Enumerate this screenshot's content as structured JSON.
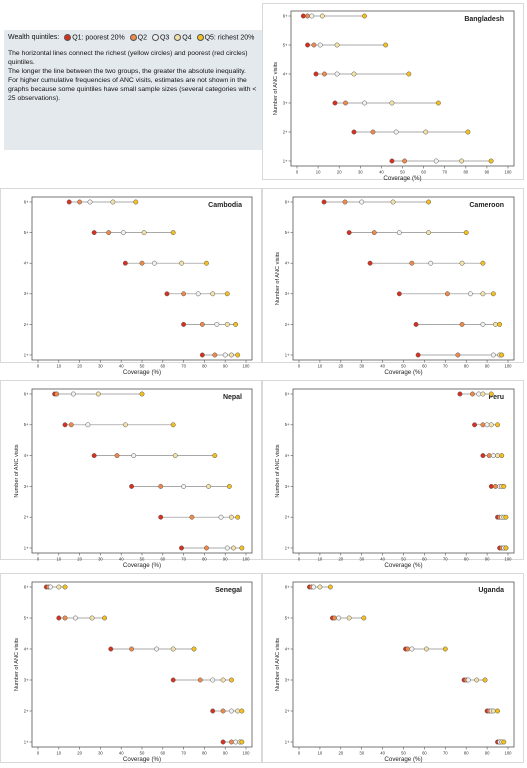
{
  "legend": {
    "title": "Wealth quintiles:",
    "items": [
      {
        "label": "Q1: poorest 20%",
        "color": "#d7301f"
      },
      {
        "label": "Q2",
        "color": "#f08a4b"
      },
      {
        "label": "Q3",
        "color": "#f2f2f2"
      },
      {
        "label": "Q4",
        "color": "#f3e3a6"
      },
      {
        "label": "Q5: richest 20%",
        "color": "#f5c01e"
      }
    ]
  },
  "note": [
    "The horizontal lines connect the richest (yellow circles) and poorest (red circles) quintiles.",
    "The longer the line between the two groups, the greater the absolute inequality.",
    "For higher cumulative frequencies of ANC visits, estimates are not shown in the graphs because some quintiles have small sample sizes (several categories with < 25 observations)."
  ],
  "chart_data": [
    {
      "type": "scatter",
      "title": "Bangladesh",
      "xlabel": "Coverage (%)",
      "ylabel": "Number of ANC visits",
      "xlim": [
        0,
        100
      ],
      "x_ticks": [
        0,
        10,
        20,
        30,
        40,
        50,
        60,
        70,
        80,
        90,
        100
      ],
      "y_ticks": [
        "1+",
        "2+",
        "3+",
        "4+",
        "5+",
        "6+"
      ],
      "rows": [
        {
          "visits": "6+",
          "values": [
            3,
            5,
            7,
            12,
            32
          ]
        },
        {
          "visits": "5+",
          "values": [
            5,
            8,
            11,
            19,
            42
          ]
        },
        {
          "visits": "4+",
          "values": [
            9,
            13,
            19,
            27,
            53
          ]
        },
        {
          "visits": "3+",
          "values": [
            18,
            23,
            32,
            45,
            67
          ]
        },
        {
          "visits": "2+",
          "values": [
            27,
            36,
            47,
            61,
            81
          ]
        },
        {
          "visits": "1+",
          "values": [
            45,
            51,
            66,
            78,
            92
          ]
        }
      ]
    },
    {
      "type": "scatter",
      "title": "Cambodia",
      "xlabel": "Coverage (%)",
      "ylabel": "",
      "xlim": [
        0,
        100
      ],
      "x_ticks": [
        0,
        10,
        20,
        30,
        40,
        50,
        60,
        70,
        80,
        90,
        100
      ],
      "y_ticks": [
        "1+",
        "2+",
        "3+",
        "4+",
        "5+",
        "6+"
      ],
      "rows": [
        {
          "visits": "6+",
          "values": [
            15,
            20,
            25,
            36,
            47
          ]
        },
        {
          "visits": "5+",
          "values": [
            27,
            34,
            41,
            51,
            65
          ]
        },
        {
          "visits": "4+",
          "values": [
            42,
            50,
            56,
            69,
            81
          ]
        },
        {
          "visits": "3+",
          "values": [
            62,
            70,
            77,
            84,
            91
          ]
        },
        {
          "visits": "2+",
          "values": [
            70,
            79,
            86,
            91,
            95
          ]
        },
        {
          "visits": "1+",
          "values": [
            79,
            85,
            90,
            93,
            96
          ]
        }
      ]
    },
    {
      "type": "scatter",
      "title": "Cameroon",
      "xlabel": "Coverage (%)",
      "ylabel": "Number of ANC visits",
      "xlim": [
        0,
        100
      ],
      "x_ticks": [
        0,
        10,
        20,
        30,
        40,
        50,
        60,
        70,
        80,
        90,
        100
      ],
      "y_ticks": [
        "1+",
        "2+",
        "3+",
        "4+",
        "5+",
        "6+"
      ],
      "rows": [
        {
          "visits": "6+",
          "values": [
            12,
            22,
            30,
            45,
            62
          ]
        },
        {
          "visits": "5+",
          "values": [
            24,
            36,
            48,
            62,
            80
          ]
        },
        {
          "visits": "4+",
          "values": [
            34,
            54,
            63,
            78,
            88
          ]
        },
        {
          "visits": "3+",
          "values": [
            48,
            71,
            82,
            88,
            93
          ]
        },
        {
          "visits": "2+",
          "values": [
            56,
            78,
            88,
            94,
            96
          ]
        },
        {
          "visits": "1+",
          "values": [
            57,
            76,
            93,
            96,
            97
          ]
        }
      ]
    },
    {
      "type": "scatter",
      "title": "Nepal",
      "xlabel": "Coverage (%)",
      "ylabel": "Number of ANC visits",
      "xlim": [
        0,
        100
      ],
      "x_ticks": [
        0,
        10,
        20,
        30,
        40,
        50,
        60,
        70,
        80,
        90,
        100
      ],
      "y_ticks": [
        "1+",
        "2+",
        "3+",
        "4+",
        "5+",
        "6+"
      ],
      "rows": [
        {
          "visits": "6+",
          "values": [
            8,
            9,
            17,
            29,
            50
          ]
        },
        {
          "visits": "5+",
          "values": [
            13,
            16,
            24,
            42,
            65
          ]
        },
        {
          "visits": "4+",
          "values": [
            27,
            38,
            46,
            66,
            85
          ]
        },
        {
          "visits": "3+",
          "values": [
            45,
            59,
            70,
            82,
            92
          ]
        },
        {
          "visits": "2+",
          "values": [
            59,
            74,
            88,
            93,
            96
          ]
        },
        {
          "visits": "1+",
          "values": [
            69,
            81,
            91,
            94,
            98
          ]
        }
      ]
    },
    {
      "type": "scatter",
      "title": "Peru",
      "xlabel": "Coverage (%)",
      "ylabel": "Number of ANC visits",
      "xlim": [
        0,
        100
      ],
      "x_ticks": [
        0,
        10,
        20,
        30,
        40,
        50,
        60,
        70,
        80,
        90,
        100
      ],
      "y_ticks": [
        "1+",
        "2+",
        "3+",
        "4+",
        "5+",
        "6+"
      ],
      "rows": [
        {
          "visits": "6+",
          "values": [
            77,
            83,
            86,
            88,
            92
          ]
        },
        {
          "visits": "5+",
          "values": [
            84,
            88,
            90,
            92,
            95
          ]
        },
        {
          "visits": "4+",
          "values": [
            88,
            91,
            93,
            95,
            97
          ]
        },
        {
          "visits": "3+",
          "values": [
            92,
            94,
            96,
            97,
            98
          ]
        },
        {
          "visits": "2+",
          "values": [
            95,
            96,
            97,
            98,
            99
          ]
        },
        {
          "visits": "1+",
          "values": [
            96,
            97,
            98,
            99,
            99
          ]
        }
      ]
    },
    {
      "type": "scatter",
      "title": "Senegal",
      "xlabel": "Coverage (%)",
      "ylabel": "Number of ANC visits",
      "xlim": [
        0,
        100
      ],
      "x_ticks": [
        0,
        10,
        20,
        30,
        40,
        50,
        60,
        70,
        80,
        90,
        100
      ],
      "y_ticks": [
        "1+",
        "2+",
        "3+",
        "4+",
        "5+",
        "6+"
      ],
      "rows": [
        {
          "visits": "6+",
          "values": [
            4,
            5,
            6,
            10,
            13
          ]
        },
        {
          "visits": "5+",
          "values": [
            10,
            13,
            18,
            26,
            32
          ]
        },
        {
          "visits": "4+",
          "values": [
            35,
            45,
            57,
            65,
            75
          ]
        },
        {
          "visits": "3+",
          "values": [
            65,
            78,
            84,
            89,
            93
          ]
        },
        {
          "visits": "2+",
          "values": [
            84,
            89,
            93,
            96,
            98
          ]
        },
        {
          "visits": "1+",
          "values": [
            89,
            93,
            95,
            97,
            98
          ]
        }
      ]
    },
    {
      "type": "scatter",
      "title": "Uganda",
      "xlabel": "Coverage (%)",
      "ylabel": "Number of ANC visits",
      "xlim": [
        0,
        100
      ],
      "x_ticks": [
        0,
        10,
        20,
        30,
        40,
        50,
        60,
        70,
        80,
        90,
        100
      ],
      "y_ticks": [
        "1+",
        "2+",
        "3+",
        "4+",
        "5+",
        "6+"
      ],
      "rows": [
        {
          "visits": "6+",
          "values": [
            5,
            6,
            7,
            10,
            15
          ]
        },
        {
          "visits": "5+",
          "values": [
            16,
            17,
            19,
            24,
            31
          ]
        },
        {
          "visits": "4+",
          "values": [
            51,
            52,
            54,
            61,
            70
          ]
        },
        {
          "visits": "3+",
          "values": [
            79,
            80,
            81,
            85,
            89
          ]
        },
        {
          "visits": "2+",
          "values": [
            90,
            91,
            92,
            93,
            95
          ]
        },
        {
          "visits": "1+",
          "values": [
            95,
            96,
            96,
            97,
            98
          ]
        }
      ]
    }
  ]
}
